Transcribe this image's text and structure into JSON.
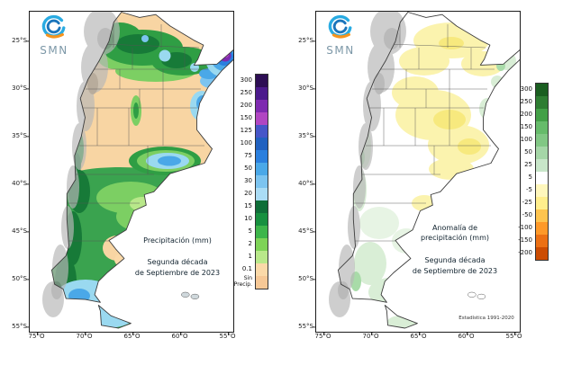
{
  "left_panel": {
    "logo": {
      "text": "SMN"
    },
    "title": "Precipitación (mm)",
    "subtitle_line1": "Segunda década",
    "subtitle_line2": "de Septiembre de 2023",
    "lat_ticks": [
      "25°S",
      "30°S",
      "35°S",
      "40°S",
      "45°S",
      "50°S",
      "55°S"
    ],
    "lon_ticks": [
      "75°O",
      "70°O",
      "65°O",
      "60°O",
      "55°O"
    ],
    "legend": {
      "labels": [
        "300",
        "250",
        "200",
        "150",
        "125",
        "100",
        "75",
        "50",
        "30",
        "20",
        "15",
        "10",
        "5",
        "2",
        "1",
        "0.1",
        "Sin Precip."
      ],
      "colors": [
        "#2d0e54",
        "#4b1a8c",
        "#7e2ab0",
        "#b146c2",
        "#4656c8",
        "#2161c0",
        "#2a7fde",
        "#4aa8e8",
        "#7cc4f0",
        "#aadcf5",
        "#0f6e38",
        "#17903f",
        "#3db54a",
        "#7ed357",
        "#b9e88a",
        "#fbd9a8",
        "#f6c896"
      ]
    }
  },
  "right_panel": {
    "logo": {
      "text": "SMN"
    },
    "title_line1": "Anomalía de",
    "title_line2": "precipitación (mm)",
    "subtitle_line1": "Segunda década",
    "subtitle_line2": "de Septiembre de 2023",
    "footnote": "Estadística 1991-2020",
    "lat_ticks": [
      "25°S",
      "30°S",
      "35°S",
      "40°S",
      "45°S",
      "50°S",
      "55°S"
    ],
    "lon_ticks": [
      "75°O",
      "70°O",
      "65°O",
      "60°O",
      "55°O"
    ],
    "legend": {
      "labels": [
        "300",
        "250",
        "200",
        "150",
        "100",
        "50",
        "25",
        "5",
        "-5",
        "-25",
        "-50",
        "-100",
        "-150",
        "-200"
      ],
      "colors": [
        "#1a5e20",
        "#2e7d32",
        "#43a047",
        "#66bb6a",
        "#81c784",
        "#a5d6a7",
        "#c8e6c9",
        "#ffffff",
        "#fff7bc",
        "#ffee8c",
        "#fec44f",
        "#fe9929",
        "#ec7014",
        "#cc4c02"
      ]
    }
  }
}
